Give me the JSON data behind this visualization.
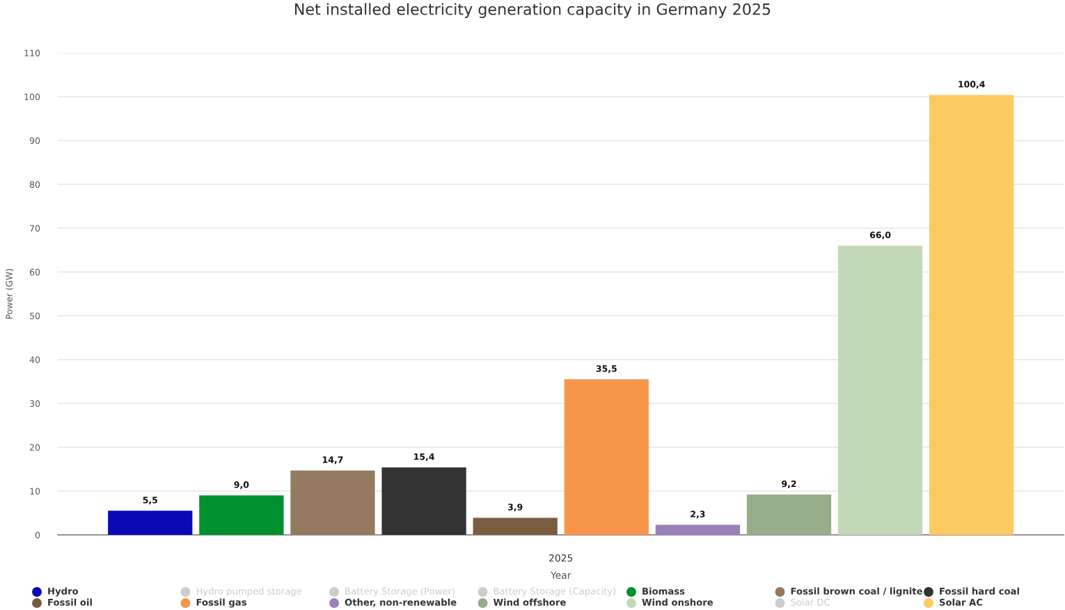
{
  "chart_data": {
    "type": "bar",
    "title": "Net installed electricity generation capacity in Germany 2025",
    "xlabel": "Year",
    "ylabel": "Power (GW)",
    "categories": [
      "2025"
    ],
    "ylim": [
      0,
      110
    ],
    "yticks": [
      0,
      10,
      20,
      30,
      40,
      50,
      60,
      70,
      80,
      90,
      100,
      110
    ],
    "grid": "y",
    "legend": "bottom",
    "series": [
      {
        "name": "Hydro",
        "color": "#0a0ab4",
        "values": [
          5.5
        ],
        "value_labels": [
          "5,5"
        ]
      },
      {
        "name": "Hydro pumped storage",
        "color": "#cccccc",
        "values": [
          null
        ]
      },
      {
        "name": "Battery Storage (Power)",
        "color": "#cccccc",
        "values": [
          null
        ]
      },
      {
        "name": "Battery Storage (Capacity)",
        "color": "#cccccc",
        "values": [
          null
        ]
      },
      {
        "name": "Biomass",
        "color": "#00912e",
        "values": [
          9.0
        ],
        "value_labels": [
          "9,0"
        ]
      },
      {
        "name": "Fossil brown coal / lignite",
        "color": "#947a60",
        "values": [
          14.7
        ],
        "value_labels": [
          "14,7"
        ]
      },
      {
        "name": "Fossil hard coal",
        "color": "#333333",
        "values": [
          15.4
        ],
        "value_labels": [
          "15,4"
        ]
      },
      {
        "name": "Fossil oil",
        "color": "#7a5c40",
        "values": [
          3.9
        ],
        "value_labels": [
          "3,9"
        ]
      },
      {
        "name": "Fossil gas",
        "color": "#f7964a",
        "values": [
          35.5
        ],
        "value_labels": [
          "35,5"
        ]
      },
      {
        "name": "Other, non-renewable",
        "color": "#9b80b8",
        "values": [
          2.3
        ],
        "value_labels": [
          "2,3"
        ]
      },
      {
        "name": "Wind offshore",
        "color": "#98ad8a",
        "values": [
          9.2
        ],
        "value_labels": [
          "9,2"
        ]
      },
      {
        "name": "Wind onshore",
        "color": "#c2d9b5",
        "values": [
          66.0
        ],
        "value_labels": [
          "66,0"
        ]
      },
      {
        "name": "Solar DC",
        "color": "#cccccc",
        "values": [
          null
        ]
      },
      {
        "name": "Solar AC",
        "color": "#fdcb62",
        "values": [
          100.4
        ],
        "value_labels": [
          "100,4"
        ]
      }
    ]
  }
}
